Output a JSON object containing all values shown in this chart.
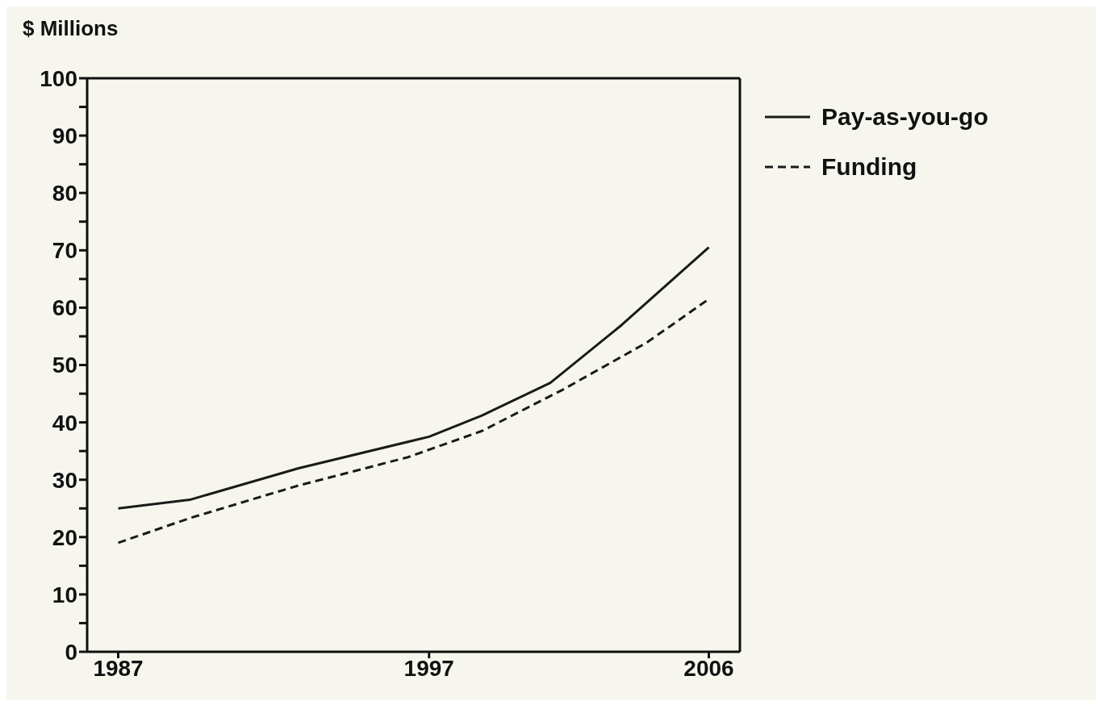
{
  "chart_data": {
    "type": "line",
    "ylabel": "$ Millions",
    "xlim": [
      1986,
      2007
    ],
    "xticks": [
      1987,
      1997,
      2006
    ],
    "ylim": [
      0,
      100
    ],
    "yticks": [
      0,
      {
        "value": 5,
        "label": null
      },
      10,
      {
        "value": 15,
        "label": null
      },
      20,
      {
        "value": 25,
        "label": null
      },
      30,
      {
        "value": 35,
        "label": null
      },
      40,
      {
        "value": 45,
        "label": null
      },
      50,
      {
        "value": 55,
        "label": null
      },
      60,
      {
        "value": 65,
        "label": null
      },
      70,
      {
        "value": 75,
        "label": null
      },
      80,
      {
        "value": 85,
        "label": null
      },
      90,
      {
        "value": 95,
        "label": null
      },
      100
    ],
    "legend": "top right",
    "marker": "none",
    "series": [
      {
        "name": "Pay-as-you-go",
        "color": "#1a1a1a",
        "line_style": "solid",
        "x": [
          1987,
          1989.3,
          1992.8,
          1997,
          1998.7,
          2000.9,
          2003.2,
          2006
        ],
        "values": [
          25,
          26.5,
          32,
          37.5,
          41.2,
          46.9,
          57,
          70.5
        ]
      },
      {
        "name": "Funding",
        "color": "#1a1a1a",
        "line_style": "dashed",
        "x": [
          1987,
          1989.3,
          1992.8,
          1996.3,
          1998.7,
          2001.3,
          2004,
          2006
        ],
        "values": [
          19,
          23.3,
          29,
          33.9,
          38.5,
          45.7,
          53.9,
          61.5
        ]
      }
    ]
  }
}
